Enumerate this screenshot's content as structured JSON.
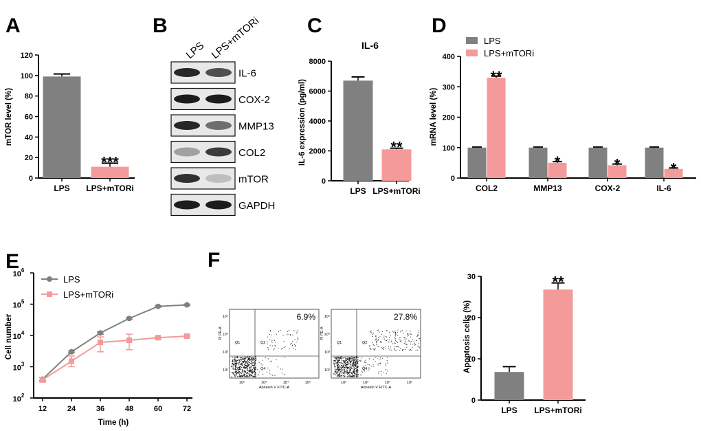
{
  "panel_labels": {
    "A": "A",
    "B": "B",
    "C": "C",
    "D": "D",
    "E": "E",
    "F": "F"
  },
  "colors": {
    "lps": "#808080",
    "lps_mtori": "#f59a9a",
    "axis": "#000000",
    "band": "#1c1c1c"
  },
  "blot": {
    "lanes": [
      "LPS",
      "LPS+mTORi"
    ],
    "bands": [
      {
        "name": "IL-6",
        "lane1": 0.95,
        "lane2": 0.75
      },
      {
        "name": "COX-2",
        "lane1": 1.0,
        "lane2": 1.0
      },
      {
        "name": "MMP13",
        "lane1": 0.95,
        "lane2": 0.6
      },
      {
        "name": "COL2",
        "lane1": 0.35,
        "lane2": 0.85
      },
      {
        "name": "mTOR",
        "lane1": 0.9,
        "lane2": 0.2
      },
      {
        "name": "GAPDH",
        "lane1": 1.0,
        "lane2": 1.0
      }
    ]
  },
  "flow": {
    "axis_x": "Annexin V FITC-A",
    "axis_y": "PI PE-A",
    "quadrants": [
      "Q1",
      "Q2",
      "Q3",
      "Q4"
    ],
    "ticks_x": [
      "10²",
      "10³",
      "10⁴",
      "10⁵"
    ],
    "ticks_y": [
      "10²",
      "10³",
      "10⁴",
      "10⁵"
    ],
    "plots": [
      {
        "percent": "6.9%",
        "apoptosis": 0.069
      },
      {
        "percent": "27.8%",
        "apoptosis": 0.278
      }
    ]
  },
  "chart_data": [
    {
      "id": "A",
      "type": "bar",
      "title": "",
      "xlabel": "",
      "ylabel": "mTOR level (%)",
      "categories": [
        "LPS",
        "LPS+mTORi"
      ],
      "values": [
        99,
        11
      ],
      "errors": [
        2.5,
        3.5
      ],
      "ylim": [
        0,
        120
      ],
      "yticks": [
        "0",
        "20",
        "40",
        "60",
        "80",
        "100",
        "120"
      ],
      "annotations": [
        "",
        "***"
      ]
    },
    {
      "id": "C",
      "type": "bar",
      "title": "IL-6",
      "xlabel": "",
      "ylabel": "IL-6 expression (pg/ml)",
      "categories": [
        "LPS",
        "LPS+mTORi"
      ],
      "values": [
        6700,
        2100
      ],
      "errors": [
        250,
        80
      ],
      "ylim": [
        0,
        8000
      ],
      "yticks": [
        "0",
        "2000",
        "4000",
        "6000",
        "8000"
      ],
      "annotations": [
        "",
        "**"
      ]
    },
    {
      "id": "D",
      "type": "bar",
      "title": "",
      "xlabel": "",
      "ylabel": "mRNA level (%)",
      "categories": [
        "COL2",
        "MMP13",
        "COX-2",
        "IL-6"
      ],
      "series": [
        {
          "name": "LPS",
          "values": [
            100,
            100,
            100,
            100
          ],
          "errors": [
            2,
            2,
            2,
            2
          ],
          "annotations": [
            "",
            "",
            "",
            ""
          ]
        },
        {
          "name": "LPS+mTORi",
          "values": [
            330,
            50,
            42,
            30
          ],
          "errors": [
            5,
            4,
            4,
            3
          ],
          "annotations": [
            "**",
            "*",
            "*",
            "*"
          ]
        }
      ],
      "ylim": [
        0,
        400
      ],
      "yticks": [
        "0",
        "100",
        "200",
        "300",
        "400"
      ],
      "legend": "top-left"
    },
    {
      "id": "E",
      "type": "line",
      "title": "",
      "xlabel": "Time (h)",
      "ylabel": "Cell number",
      "x": [
        12,
        24,
        36,
        48,
        60,
        72
      ],
      "series": [
        {
          "name": "LPS",
          "values": [
            400,
            3000,
            12000,
            35000,
            85000,
            95000
          ],
          "err_lo": [
            360,
            2800,
            11000,
            33000,
            80000,
            90000
          ],
          "err_hi": [
            450,
            3200,
            13000,
            37000,
            90000,
            100000
          ]
        },
        {
          "name": "LPS+mTORi",
          "values": [
            380,
            1500,
            6000,
            7000,
            8500,
            9500
          ],
          "err_lo": [
            320,
            1000,
            3000,
            3500,
            8000,
            9000
          ],
          "err_hi": [
            440,
            2200,
            9000,
            11000,
            9000,
            10000
          ]
        }
      ],
      "yscale": "log",
      "ylim_exp": [
        2,
        6
      ],
      "xticks": [
        "12",
        "24",
        "36",
        "48",
        "60",
        "72"
      ],
      "ytick_base": "10",
      "ytick_exps": [
        "2",
        "3",
        "4",
        "5",
        "6"
      ],
      "legend": "top-left"
    },
    {
      "id": "F",
      "type": "bar",
      "title": "",
      "xlabel": "",
      "ylabel": "Apoptosis cells (%)",
      "categories": [
        "LPS",
        "LPS+mTORi"
      ],
      "values": [
        6.8,
        26.8
      ],
      "errors": [
        1.3,
        1.6
      ],
      "ylim": [
        0,
        30
      ],
      "yticks": [
        "0",
        "10",
        "20",
        "30"
      ],
      "annotations": [
        "",
        "**"
      ]
    }
  ]
}
